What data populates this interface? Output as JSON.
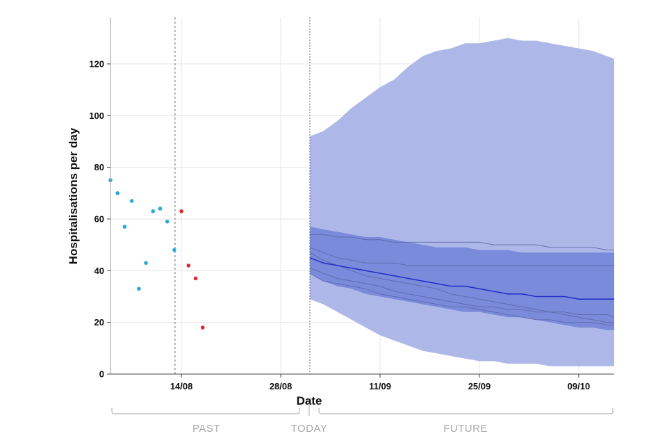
{
  "chart_data": {
    "type": "line",
    "xlabel": "Date",
    "ylabel": "Hospitalisations per day",
    "ylim": [
      0,
      138
    ],
    "yticks": [
      0,
      20,
      40,
      60,
      80,
      100,
      120
    ],
    "x_start_day": 0,
    "x_end_day": 71,
    "x_note": "x in days after 04/08",
    "xticks": [
      {
        "day": 10,
        "label": "14/08"
      },
      {
        "day": 24,
        "label": "28/08"
      },
      {
        "day": 38,
        "label": "11/09"
      },
      {
        "day": 52,
        "label": "25/09"
      },
      {
        "day": 66,
        "label": "09/10"
      }
    ],
    "cutoff_day": 9.1,
    "today_day": 28.1,
    "observed_points": {
      "name": "Observed (used)",
      "color": "#29a8e0",
      "x": [
        0,
        1,
        2,
        3,
        4,
        5,
        6,
        7,
        8,
        9
      ],
      "y": [
        75,
        70,
        57,
        67,
        33,
        43,
        63,
        64,
        59,
        48
      ]
    },
    "excluded_points": {
      "name": "Observed (after cutoff)",
      "color": "#e0262a",
      "x": [
        10,
        11,
        12,
        13
      ],
      "y": [
        63,
        42,
        37,
        18
      ]
    },
    "forecast": {
      "x": [
        28.1,
        30,
        32,
        34,
        36,
        38,
        40,
        42,
        44,
        46,
        48,
        50,
        52,
        54,
        56,
        58,
        60,
        62,
        64,
        66,
        68,
        70,
        71
      ],
      "outer_upper": [
        92,
        94,
        98,
        103,
        107,
        111,
        114,
        119,
        123,
        125,
        126,
        128,
        128,
        129,
        130,
        129,
        129,
        128,
        127,
        126,
        125,
        123,
        122
      ],
      "outer_lower": [
        29,
        27,
        24,
        21,
        18,
        15,
        13,
        11,
        9,
        8,
        7,
        6,
        5,
        5,
        4,
        4,
        4,
        3,
        3,
        3,
        3,
        3,
        3
      ],
      "inner_upper": [
        57,
        56,
        55,
        54,
        53,
        53,
        52,
        51,
        50,
        49,
        49,
        49,
        48,
        48,
        48,
        47,
        47,
        47,
        47,
        47,
        47,
        47,
        47
      ],
      "inner_lower": [
        39,
        36,
        34,
        33,
        31,
        30,
        29,
        28,
        27,
        26,
        25,
        24,
        24,
        23,
        22,
        22,
        21,
        20,
        19,
        18,
        18,
        17,
        17
      ],
      "median": [
        45,
        43,
        42,
        41,
        40,
        39,
        38,
        37,
        36,
        35,
        34,
        34,
        33,
        32,
        31,
        31,
        30,
        30,
        30,
        29,
        29,
        29,
        29
      ],
      "sample_paths": [
        [
          54,
          54,
          53,
          53,
          52,
          52,
          51,
          51,
          51,
          51,
          51,
          51,
          51,
          50,
          50,
          50,
          50,
          49,
          49,
          49,
          49,
          48,
          48
        ],
        [
          49,
          47,
          45,
          44,
          43,
          43,
          43,
          42,
          42,
          42,
          42,
          42,
          42,
          42,
          42,
          42,
          42,
          42,
          42,
          42,
          42,
          42,
          42
        ],
        [
          47,
          44,
          42,
          40,
          38,
          37,
          36,
          35,
          34,
          33,
          31,
          30,
          29,
          28,
          27,
          26,
          25,
          24,
          24,
          23,
          23,
          23,
          22
        ],
        [
          41,
          39,
          37,
          36,
          35,
          34,
          32,
          31,
          30,
          29,
          28,
          27,
          26,
          26,
          25,
          25,
          24,
          24,
          23,
          22,
          21,
          20,
          20
        ],
        [
          39,
          36,
          35,
          34,
          33,
          31,
          30,
          29,
          28,
          27,
          26,
          26,
          25,
          24,
          23,
          22,
          21,
          21,
          20,
          20,
          20,
          19,
          19
        ]
      ],
      "colors": {
        "outer_band": "#aeb8e8",
        "inner_band": "#7a8bdb",
        "median": "#2332c8",
        "paths": "#5c66a6"
      }
    }
  },
  "periods": {
    "past": "PAST",
    "today": "TODAY",
    "future": "FUTURE"
  }
}
